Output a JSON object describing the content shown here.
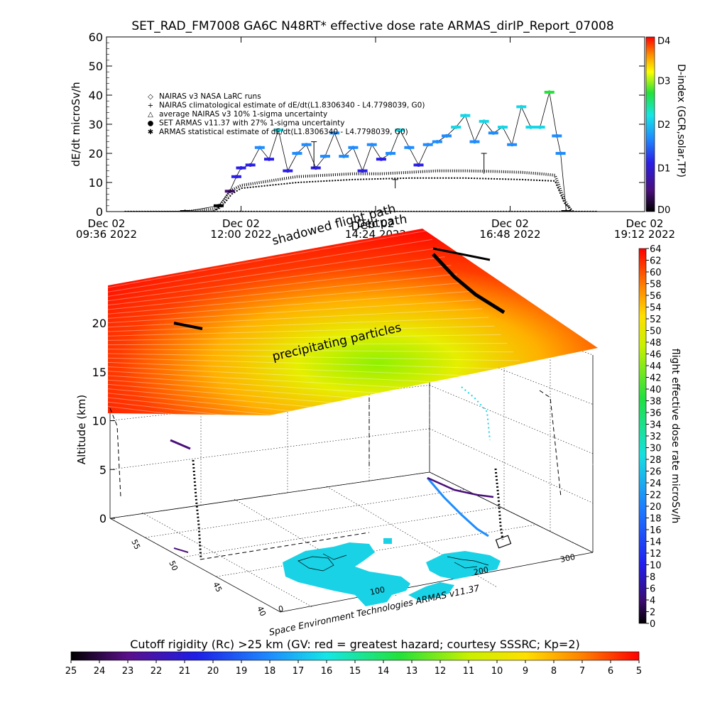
{
  "chart_data": [
    {
      "type": "line",
      "title": "SET_RAD_FM7008  GA6C N48RT* effective dose rate ARMAS_dirIP_Report_07008",
      "ylabel": "dE/dt microSv/h",
      "ylim": [
        0,
        60
      ],
      "yticks": [
        "0",
        "10",
        "20",
        "30",
        "40",
        "50",
        "60"
      ],
      "xlim": [
        "09:36",
        "19:12"
      ],
      "xticks": [
        {
          "t": "09:36",
          "line1": "Dec 02",
          "line2": "09:36 2022"
        },
        {
          "t": "12:00",
          "line1": "Dec 02",
          "line2": "12:00 2022"
        },
        {
          "t": "14:24",
          "line1": "Dec 02",
          "line2": "14:24 2022"
        },
        {
          "t": "16:48",
          "line1": "Dec 02",
          "line2": "16:48 2022"
        },
        {
          "t": "19:12",
          "line1": "Dec 02",
          "line2": "19:12 2022"
        }
      ],
      "legend": [
        "NAIRAS v3 NASA LaRC runs",
        "NAIRAS climatological estimate of dE/dt(L1.8306340 - L4.7798039, G0)",
        "average NAIRAS v3 10% 1-sigma uncertainty",
        "SET ARMAS v11.37 with 27% 1-sigma uncertainty",
        "ARMAS statistical estimate of dE/dt(L1.8306340 - L4.7798039, G0)"
      ],
      "legend_position": "top-left",
      "series": [
        {
          "name": "SET ARMAS v11.37 with 27% 1-sigma uncertainty",
          "x": [
            "11:00",
            "11:36",
            "11:48",
            "11:55",
            "12:00",
            "12:10",
            "12:20",
            "12:30",
            "12:40",
            "12:50",
            "13:00",
            "13:10",
            "13:20",
            "13:30",
            "13:40",
            "13:50",
            "14:00",
            "14:10",
            "14:20",
            "14:30",
            "14:40",
            "14:50",
            "15:00",
            "15:10",
            "15:20",
            "15:30",
            "15:40",
            "15:50",
            "16:00",
            "16:10",
            "16:20",
            "16:30",
            "16:40",
            "16:50",
            "17:00",
            "17:10",
            "17:20",
            "17:30",
            "17:38",
            "17:42",
            "17:48"
          ],
          "y": [
            0,
            2,
            7,
            12,
            15,
            16,
            22,
            18,
            28,
            14,
            20,
            23,
            15,
            19,
            27,
            19,
            22,
            14,
            23,
            18,
            20,
            28,
            22,
            16,
            23,
            24,
            26,
            29,
            33,
            24,
            31,
            27,
            29,
            23,
            36,
            29,
            29,
            41,
            26,
            20,
            0
          ],
          "color_scale": "D-index"
        },
        {
          "name": "NAIRAS climatological estimate of dE/dt(L1.8306340 - L4.7798039, G0)",
          "x": [
            "11:00",
            "11:36",
            "11:48",
            "12:00",
            "12:20",
            "12:40",
            "13:00",
            "13:30",
            "14:00",
            "14:30",
            "15:00",
            "15:30",
            "16:00",
            "16:30",
            "17:00",
            "17:20",
            "17:36",
            "17:46",
            "17:54"
          ],
          "y": [
            0,
            1,
            7,
            9,
            10,
            11,
            12,
            12.5,
            13,
            13,
            13.5,
            14,
            14,
            13.8,
            13.5,
            13,
            12.5,
            4,
            0
          ]
        },
        {
          "name": "NAIRAS v3 NASA LaRC runs",
          "x": [
            "09:56",
            "11:30",
            "11:40",
            "11:50",
            "12:00",
            "12:30",
            "13:00",
            "14:00",
            "15:00",
            "16:00",
            "17:00",
            "17:36",
            "17:46",
            "17:56",
            "18:20"
          ],
          "y": [
            0,
            0,
            2,
            6,
            8,
            9,
            10,
            11,
            11.5,
            11.5,
            11,
            10.5,
            3,
            0,
            0
          ]
        }
      ],
      "right_colorbar": {
        "label": "D-index (GCR,solar,TP)",
        "ticks": [
          "D0",
          "D1",
          "D2",
          "D3",
          "D4"
        ],
        "tick_values": [
          0,
          1,
          2,
          3,
          4
        ]
      }
    },
    {
      "type": "scatter",
      "subtype": "3d-surface",
      "zlabel": "Altitude (km)",
      "zticks": [
        "0",
        "5",
        "10",
        "15",
        "20"
      ],
      "ticks_left": [
        "55",
        "50",
        "45",
        "40"
      ],
      "ticks_bottom": [
        "0",
        "100",
        "200",
        "300"
      ],
      "annotations": [
        "shadowed flight path",
        "Debtpath",
        "precipitating particles"
      ],
      "footer": "Space Environment Technologies ARMAS v11.37",
      "right_colorbar": {
        "label": "flight effective dose rate microSv/h",
        "min": 0,
        "max": 64,
        "ticks": [
          "0",
          "2",
          "4",
          "6",
          "8",
          "10",
          "12",
          "14",
          "16",
          "18",
          "20",
          "22",
          "24",
          "26",
          "28",
          "30",
          "32",
          "34",
          "36",
          "38",
          "40",
          "42",
          "44",
          "46",
          "48",
          "50",
          "52",
          "54",
          "56",
          "58",
          "60",
          "62",
          "64"
        ]
      }
    },
    {
      "type": "heatmap",
      "subtype": "colorbar",
      "title": "Cutoff rigidity (Rc) >25 km (GV: red = greatest hazard; courtesy SSSRC; Kp=2)",
      "ticks": [
        "25",
        "24",
        "23",
        "22",
        "21",
        "20",
        "19",
        "18",
        "17",
        "16",
        "15",
        "14",
        "13",
        "12",
        "11",
        "10",
        "9",
        "8",
        "7",
        "6",
        "5"
      ]
    }
  ]
}
